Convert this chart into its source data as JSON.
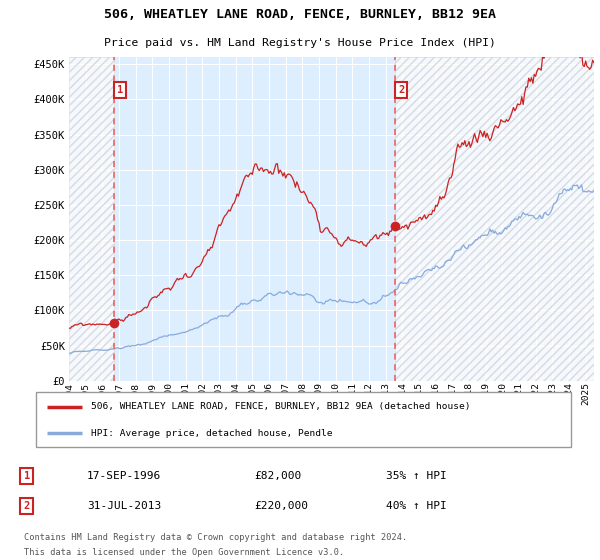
{
  "title": "506, WHEATLEY LANE ROAD, FENCE, BURNLEY, BB12 9EA",
  "subtitle": "Price paid vs. HM Land Registry's House Price Index (HPI)",
  "legend_line1": "506, WHEATLEY LANE ROAD, FENCE, BURNLEY, BB12 9EA (detached house)",
  "legend_line2": "HPI: Average price, detached house, Pendle",
  "sale1_x": 1996.708,
  "sale1_label": "17-SEP-1996",
  "sale1_price": 82000,
  "sale1_pct": "35% ↑ HPI",
  "sale2_x": 2013.583,
  "sale2_label": "31-JUL-2013",
  "sale2_price": 220000,
  "sale2_pct": "40% ↑ HPI",
  "footnote_line1": "Contains HM Land Registry data © Crown copyright and database right 2024.",
  "footnote_line2": "This data is licensed under the Open Government Licence v3.0.",
  "red_color": "#cc2222",
  "blue_color": "#88aadd",
  "bg_color": "#ddeeff",
  "hatch_bg": "#e8e8e8",
  "dash_color": "#ee5555",
  "box_color": "#cc2222",
  "ytick_vals": [
    0,
    50000,
    100000,
    150000,
    200000,
    250000,
    300000,
    350000,
    400000,
    450000
  ],
  "ytick_labels": [
    "£0",
    "£50K",
    "£100K",
    "£150K",
    "£200K",
    "£250K",
    "£300K",
    "£350K",
    "£400K",
    "£450K"
  ],
  "ylim": [
    0,
    460000
  ],
  "xmin": 1994.0,
  "xmax": 2025.5
}
